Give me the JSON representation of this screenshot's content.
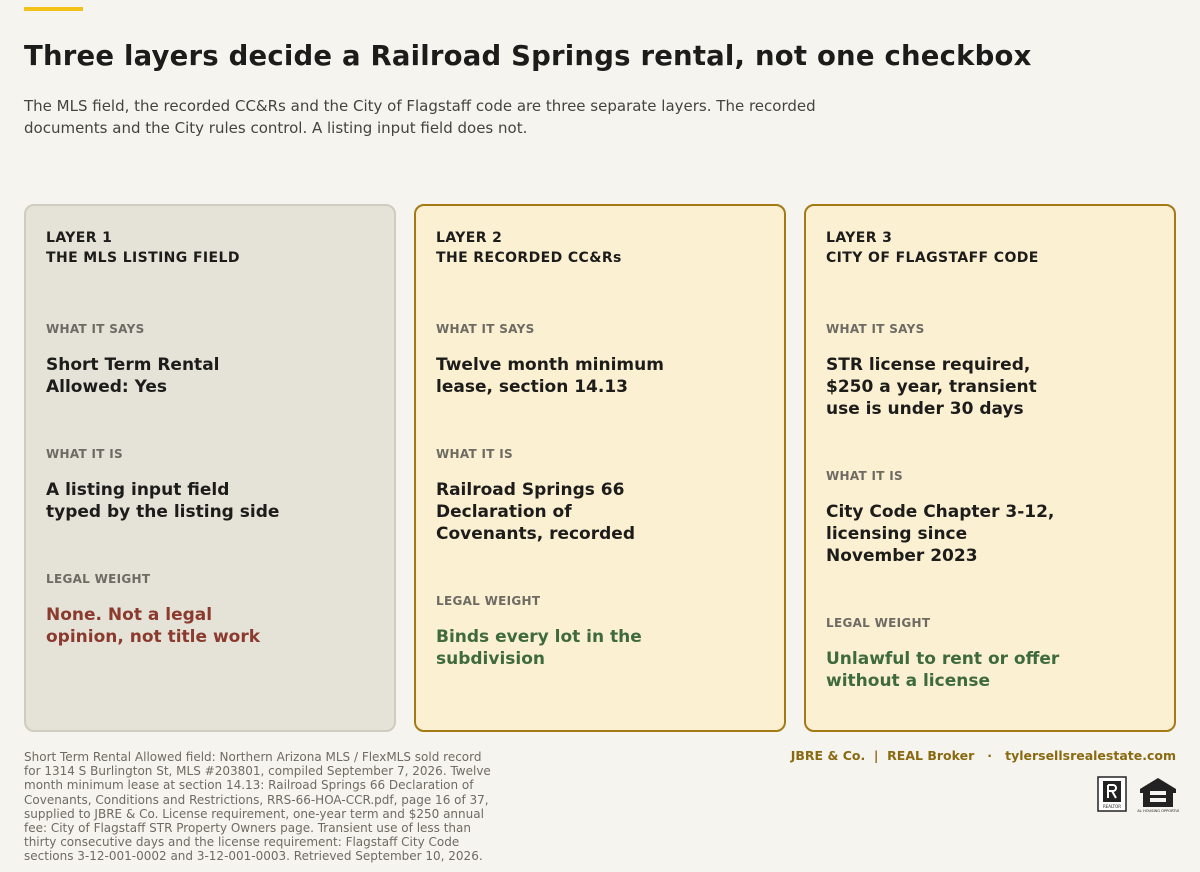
{
  "header": {
    "title": "Three layers decide a Railroad Springs rental, not one checkbox",
    "subtitle": "The MLS field, the recorded CC&Rs and the City of Flagstaff code are three separate layers. The recorded documents and the City rules control. A listing input field does not."
  },
  "cards": [
    {
      "layer": "LAYER 1",
      "name": "THE MLS LISTING FIELD",
      "says_label": "WHAT IT SAYS",
      "says": "Short Term Rental Allowed: Yes",
      "is_label": "WHAT IT IS",
      "is": "A listing input field typed by the listing side",
      "weight_label": "LEGAL WEIGHT",
      "weight": "None. Not a legal opinion, not title work"
    },
    {
      "layer": "LAYER 2",
      "name": "THE RECORDED CC&Rs",
      "says_label": "WHAT IT SAYS",
      "says": "Twelve month minimum lease, section 14.13",
      "is_label": "WHAT IT IS",
      "is": "Railroad Springs 66 Declaration of Covenants, recorded",
      "weight_label": "LEGAL WEIGHT",
      "weight": "Binds every lot in the subdivision"
    },
    {
      "layer": "LAYER 3",
      "name": "CITY OF FLAGSTAFF CODE",
      "says_label": "WHAT IT SAYS",
      "says": "STR license required, $250 a year, transient use is under 30 days",
      "is_label": "WHAT IT IS",
      "is": "City Code Chapter 3-12, licensing since November 2023",
      "weight_label": "LEGAL WEIGHT",
      "weight": "Unlawful to rent or offer without a license"
    }
  ],
  "footer": {
    "source": "Short Term Rental Allowed field: Northern Arizona MLS / FlexMLS sold record for 1314 S Burlington St, MLS #203801, compiled September 7, 2026. Twelve month minimum lease at section 14.13: Railroad Springs 66 Declaration of Covenants, Conditions and Restrictions, RRS-66-HOA-CCR.pdf, page 16 of 37, supplied to JBRE & Co. License requirement, one-year term and $250 annual fee: City of Flagstaff STR Property Owners page. Transient use of less than thirty consecutive days and the license requirement: Flagstaff City Code sections 3-12-001-0002 and 3-12-001-0003. Retrieved September 10, 2026.",
    "brand": "JBRE & Co.  |  REAL Broker   ·   tylersellsrealestate.com",
    "realtor_icon": "REALTOR",
    "equal_housing_icon": "EQUAL HOUSING OPPORTUNITY"
  }
}
